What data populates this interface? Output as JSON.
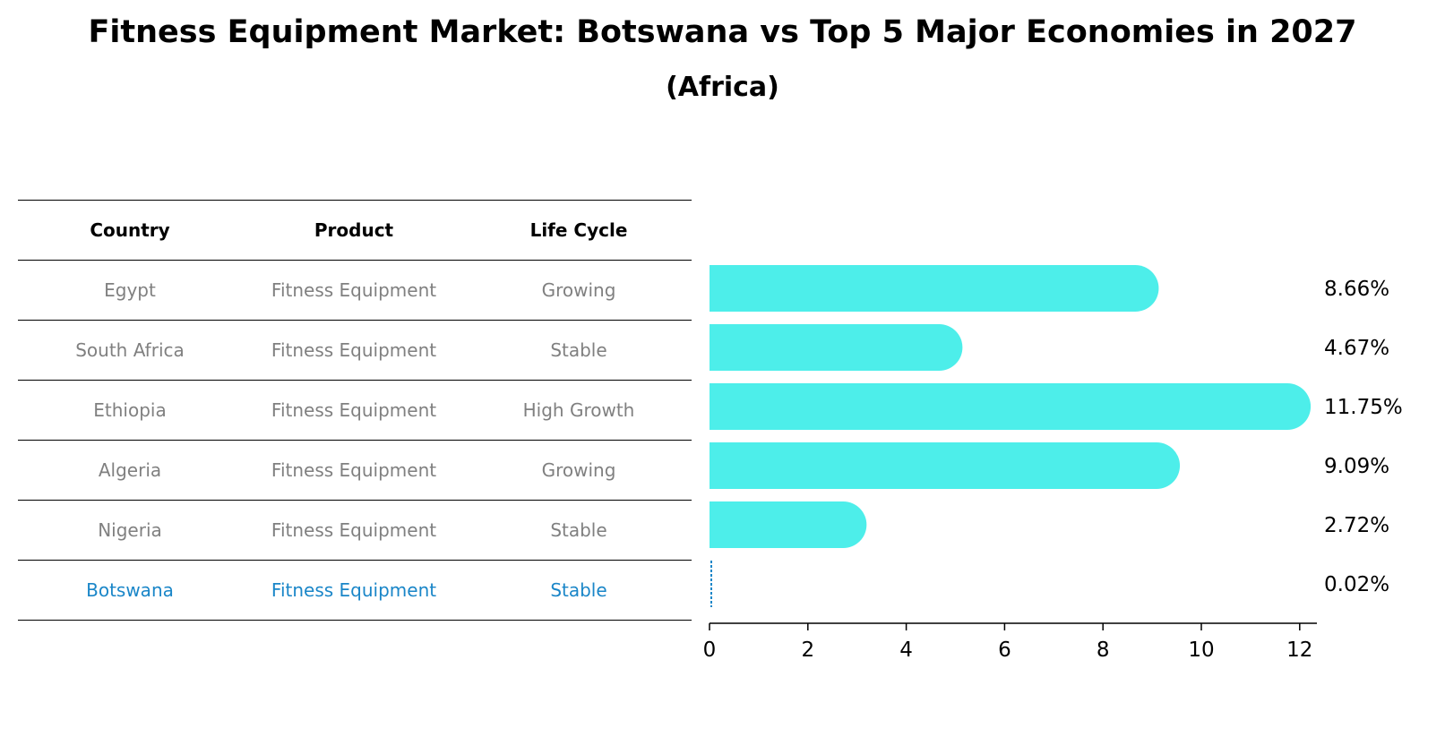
{
  "title": "Fitness Equipment Market: Botswana vs Top 5 Major Economies in 2027",
  "subtitle": "(Africa)",
  "table": {
    "headers": [
      "Country",
      "Product",
      "Life Cycle"
    ],
    "rows": [
      {
        "country": "Egypt",
        "product": "Fitness Equipment",
        "life_cycle": "Growing"
      },
      {
        "country": "South Africa",
        "product": "Fitness Equipment",
        "life_cycle": "Stable"
      },
      {
        "country": "Ethiopia",
        "product": "Fitness Equipment",
        "life_cycle": "High Growth"
      },
      {
        "country": "Algeria",
        "product": "Fitness Equipment",
        "life_cycle": "Growing"
      },
      {
        "country": "Nigeria",
        "product": "Fitness Equipment",
        "life_cycle": "Stable"
      },
      {
        "country": "Botswana",
        "product": "Fitness Equipment",
        "life_cycle": "Stable"
      }
    ]
  },
  "chart_data": {
    "type": "bar",
    "orientation": "horizontal",
    "categories": [
      "Egypt",
      "South Africa",
      "Ethiopia",
      "Algeria",
      "Nigeria",
      "Botswana"
    ],
    "values": [
      8.66,
      4.67,
      11.75,
      9.09,
      2.72,
      0.02
    ],
    "value_labels": [
      "8.66%",
      "4.67%",
      "11.75%",
      "9.09%",
      "2.72%",
      "0.02%"
    ],
    "xlim": [
      0,
      12.35
    ],
    "xticks": [
      0,
      2,
      4,
      6,
      8,
      10,
      12
    ],
    "grid": false,
    "colors": {
      "bar": "#4deeea",
      "highlight": "#1a86c8",
      "text": "#000000",
      "muted_text": "#808080"
    }
  }
}
